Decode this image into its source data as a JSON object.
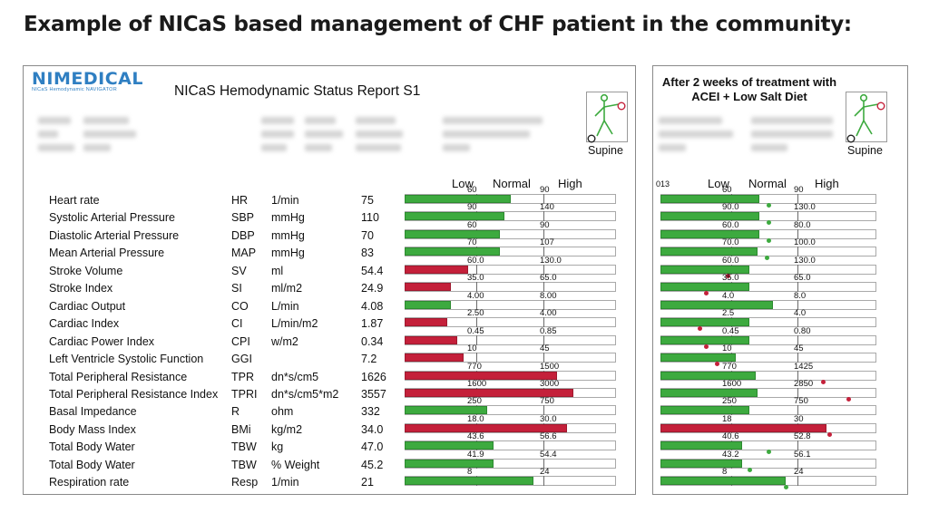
{
  "slide_title": "Example of NICaS based management of CHF patient in the community:",
  "logo": {
    "main": "NIMEDICAL",
    "sub": "NICaS Hemodynamic NAVIGATOR"
  },
  "report_title": "NICaS Hemodynamic Status Report  S1",
  "posture_label": "Supine",
  "scale": {
    "low": "Low",
    "normal": "Normal",
    "high": "High"
  },
  "treatment_note": "After 2 weeks of treatment with ACEI + Low Salt Diet",
  "right_fragment": "013",
  "colors": {
    "normal": "#3daa3f",
    "abnormal": "#c4203a"
  },
  "rows": [
    {
      "name": "Heart rate",
      "abbr": "HR",
      "unit": "1/min",
      "value": "75",
      "low": "60",
      "high": "90",
      "fill": 0.5,
      "color": "green",
      "after": {
        "low": "60",
        "high": "90",
        "fill": 0.46,
        "color": "green",
        "marker": 0.5,
        "marker_color": "green"
      }
    },
    {
      "name": "Systolic Arterial Pressure",
      "abbr": "SBP",
      "unit": "mmHg",
      "value": "110",
      "low": "90",
      "high": "140",
      "fill": 0.47,
      "color": "green",
      "after": {
        "low": "90.0",
        "high": "130.0",
        "fill": 0.46,
        "color": "green",
        "marker": 0.5,
        "marker_color": "green"
      }
    },
    {
      "name": "Diastolic Arterial Pressure",
      "abbr": "DBP",
      "unit": "mmHg",
      "value": "70",
      "low": "60",
      "high": "90",
      "fill": 0.45,
      "color": "green",
      "after": {
        "low": "60.0",
        "high": "80.0",
        "fill": 0.46,
        "color": "green",
        "marker": 0.5,
        "marker_color": "green"
      }
    },
    {
      "name": "Mean Arterial Pressure",
      "abbr": "MAP",
      "unit": "mmHg",
      "value": "83",
      "low": "70",
      "high": "107",
      "fill": 0.45,
      "color": "green",
      "after": {
        "low": "70.0",
        "high": "100.0",
        "fill": 0.45,
        "color": "green",
        "marker": 0.49,
        "marker_color": "green"
      }
    },
    {
      "name": "Stroke Volume",
      "abbr": "SV",
      "unit": "ml",
      "value": "54.4",
      "low": "60.0",
      "high": "130.0",
      "fill": 0.3,
      "color": "red",
      "after": {
        "low": "60.0",
        "high": "130.0",
        "fill": 0.41,
        "color": "green",
        "marker": 0.31,
        "marker_color": "red"
      }
    },
    {
      "name": "Stroke Index",
      "abbr": "SI",
      "unit": "ml/m2",
      "value": "24.9",
      "low": "35.0",
      "high": "65.0",
      "fill": 0.22,
      "color": "red",
      "after": {
        "low": "35.0",
        "high": "65.0",
        "fill": 0.41,
        "color": "green",
        "marker": 0.21,
        "marker_color": "red"
      }
    },
    {
      "name": "Cardiac Output",
      "abbr": "CO",
      "unit": "L/min",
      "value": "4.08",
      "low": "4.00",
      "high": "8.00",
      "fill": 0.22,
      "color": "green",
      "after": {
        "low": "4.0",
        "high": "8.0",
        "fill": 0.52,
        "color": "green",
        "marker": null,
        "marker_color": ""
      }
    },
    {
      "name": "Cardiac Index",
      "abbr": "CI",
      "unit": "L/min/m2",
      "value": "1.87",
      "low": "2.50",
      "high": "4.00",
      "fill": 0.2,
      "color": "red",
      "after": {
        "low": "2.5",
        "high": "4.0",
        "fill": 0.41,
        "color": "green",
        "marker": 0.18,
        "marker_color": "red"
      }
    },
    {
      "name": "Cardiac Power Index",
      "abbr": "CPI",
      "unit": "w/m2",
      "value": "0.34",
      "low": "0.45",
      "high": "0.85",
      "fill": 0.25,
      "color": "red",
      "after": {
        "low": "0.45",
        "high": "0.80",
        "fill": 0.41,
        "color": "green",
        "marker": 0.21,
        "marker_color": "red"
      }
    },
    {
      "name": "Left Ventricle Systolic Function",
      "abbr": "GGI",
      "unit": "",
      "value": "7.2",
      "low": "10",
      "high": "45",
      "fill": 0.28,
      "color": "red",
      "after": {
        "low": "10",
        "high": "45",
        "fill": 0.35,
        "color": "green",
        "marker": 0.26,
        "marker_color": "red"
      }
    },
    {
      "name": "Total Peripheral Resistance",
      "abbr": "TPR",
      "unit": "dn*s/cm5",
      "value": "1626",
      "low": "770",
      "high": "1500",
      "fill": 0.72,
      "color": "red",
      "after": {
        "low": "770",
        "high": "1425",
        "fill": 0.44,
        "color": "green",
        "marker": 0.75,
        "marker_color": "red"
      }
    },
    {
      "name": "Total Peripheral Resistance Index",
      "abbr": "TPRI",
      "unit": "dn*s/cm5*m2",
      "value": "3557",
      "low": "1600",
      "high": "3000",
      "fill": 0.8,
      "color": "red",
      "after": {
        "low": "1600",
        "high": "2850",
        "fill": 0.45,
        "color": "green",
        "marker": 0.87,
        "marker_color": "red"
      }
    },
    {
      "name": "Basal Impedance",
      "abbr": "R",
      "unit": "ohm",
      "value": "332",
      "low": "250",
      "high": "750",
      "fill": 0.39,
      "color": "green",
      "after": {
        "low": "250",
        "high": "750",
        "fill": 0.41,
        "color": "green",
        "marker": null,
        "marker_color": ""
      }
    },
    {
      "name": "Body Mass Index",
      "abbr": "BMi",
      "unit": "kg/m2",
      "value": "34.0",
      "low": "18.0",
      "high": "30.0",
      "fill": 0.77,
      "color": "red",
      "after": {
        "low": "18",
        "high": "30",
        "fill": 0.77,
        "color": "red",
        "marker": 0.78,
        "marker_color": "red"
      }
    },
    {
      "name": "Total Body Water",
      "abbr": "TBW",
      "unit": "kg",
      "value": "47.0",
      "low": "43.6",
      "high": "56.6",
      "fill": 0.42,
      "color": "green",
      "after": {
        "low": "40.6",
        "high": "52.8",
        "fill": 0.38,
        "color": "green",
        "marker": 0.5,
        "marker_color": "green"
      }
    },
    {
      "name": "Total Body Water",
      "abbr": "TBW",
      "unit": "% Weight",
      "value": "45.2",
      "low": "41.9",
      "high": "54.4",
      "fill": 0.42,
      "color": "green",
      "after": {
        "low": "43.2",
        "high": "56.1",
        "fill": 0.38,
        "color": "green",
        "marker": 0.41,
        "marker_color": "green"
      }
    },
    {
      "name": "Respiration rate",
      "abbr": "Resp",
      "unit": "1/min",
      "value": "21",
      "low": "8",
      "high": "24",
      "fill": 0.61,
      "color": "green",
      "after": {
        "low": "8",
        "high": "24",
        "fill": 0.58,
        "color": "green",
        "marker": 0.58,
        "marker_color": "green"
      }
    }
  ]
}
